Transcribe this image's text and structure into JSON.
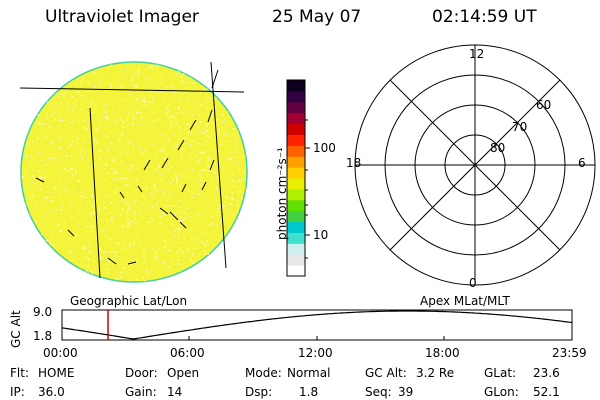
{
  "header": {
    "title": "Ultraviolet Imager",
    "date": "25 May 07",
    "time": "02:14:59 UT"
  },
  "colorbar": {
    "unit_label": "photon cm⁻²s⁻¹",
    "ticks": [
      {
        "label": "100",
        "value": 100
      },
      {
        "label": "10",
        "value": 10
      }
    ],
    "colors": [
      "#ffffff",
      "#e8e8e8",
      "#d0f0f0",
      "#40e0d0",
      "#00c8d0",
      "#40d040",
      "#60e000",
      "#b0f000",
      "#e8f000",
      "#ffd000",
      "#ffa000",
      "#ff6000",
      "#ff2000",
      "#d00000",
      "#a00030",
      "#600040",
      "#300040",
      "#100020"
    ]
  },
  "image_panel": {
    "label": "Geographic Lat/Lon",
    "disk_color": "#f4f43a",
    "disk_edge_color": "#40d0a0"
  },
  "polar_panel": {
    "label": "Apex MLat/MLT",
    "mlt_labels": {
      "top": "12",
      "bottom": "0",
      "left": "18",
      "right": "6"
    },
    "mlat_labels": [
      "60",
      "70",
      "80"
    ]
  },
  "altitude_plot": {
    "ylabel": "GC Alt",
    "yticks": [
      "9.0",
      "1.8"
    ],
    "ylim": [
      1.8,
      9.0
    ],
    "xticks": [
      "00:00",
      "06:00",
      "12:00",
      "18:00",
      "23:59"
    ],
    "current_time_marker_color": "#d00000"
  },
  "info": {
    "row1": [
      {
        "label": "Flt:",
        "value": "HOME"
      },
      {
        "label": "Door:",
        "value": "Open"
      },
      {
        "label": "Mode:",
        "value": "Normal"
      },
      {
        "label": "GC Alt:",
        "value": "3.2 Re"
      },
      {
        "label": "GLat:",
        "value": "23.6"
      }
    ],
    "row2": [
      {
        "label": "IP:",
        "value": "36.0"
      },
      {
        "label": "Gain:",
        "value": "14"
      },
      {
        "label": "Dsp:",
        "value": "1.8"
      },
      {
        "label": "Seq:",
        "value": "39"
      },
      {
        "label": "GLon:",
        "value": "52.1"
      }
    ]
  }
}
